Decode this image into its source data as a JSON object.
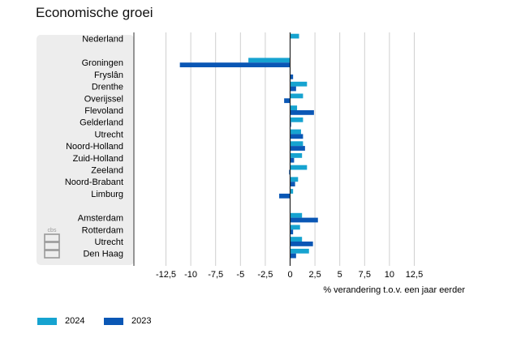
{
  "chart_data": {
    "type": "bar",
    "orientation": "horizontal",
    "title": "Economische groei",
    "xlabel": "% verandering t.o.v. een jaar eerder",
    "xlim": [
      -12.5,
      12.5
    ],
    "xticks": [
      "-12,5",
      "-10",
      "-7,5",
      "-5",
      "-2,5",
      "0",
      "2,5",
      "5",
      "7,5",
      "10",
      "12,5"
    ],
    "xtick_values": [
      -12.5,
      -10,
      -7.5,
      -5,
      -2.5,
      0,
      2.5,
      5,
      7.5,
      10,
      12.5
    ],
    "groups": [
      {
        "categories": [
          "Nederland"
        ]
      },
      {
        "categories": [
          "Groningen",
          "Fryslân",
          "Drenthe",
          "Overijssel",
          "Flevoland",
          "Gelderland",
          "Utrecht",
          "Noord-Holland",
          "Zuid-Holland",
          "Zeeland",
          "Noord-Brabant",
          "Limburg"
        ]
      },
      {
        "categories": [
          "Amsterdam",
          "Rotterdam",
          "Utrecht",
          "Den Haag"
        ]
      }
    ],
    "series": [
      {
        "name": "2024",
        "color": "#16a3d0",
        "values": [
          0.9,
          -4.2,
          0.0,
          1.7,
          1.3,
          0.7,
          1.3,
          1.1,
          1.3,
          1.2,
          1.7,
          0.8,
          0.3,
          1.2,
          1.0,
          1.2,
          1.9
        ]
      },
      {
        "name": "2023",
        "color": "#0a57b5",
        "values": [
          0.0,
          -11.1,
          0.3,
          0.6,
          -0.6,
          2.4,
          0.1,
          1.3,
          1.5,
          0.4,
          -0.1,
          0.5,
          -1.1,
          2.8,
          0.3,
          2.3,
          0.6
        ]
      }
    ]
  },
  "legend": {
    "items": [
      {
        "label": "2024",
        "color": "#16a3d0"
      },
      {
        "label": "2023",
        "color": "#0a57b5"
      }
    ]
  },
  "logo": {
    "text": "cbs"
  }
}
